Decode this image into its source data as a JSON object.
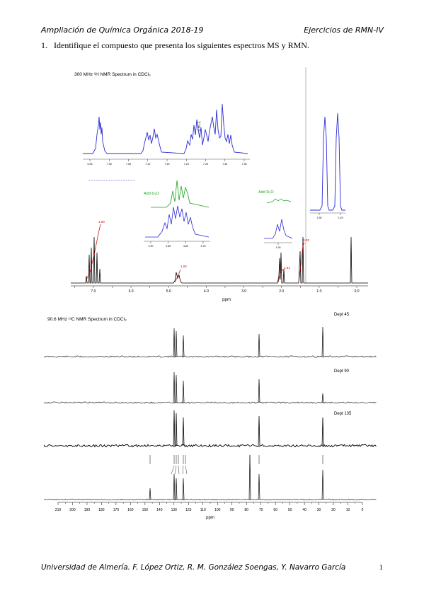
{
  "header": {
    "course": "Ampliación de Química Orgánica 2018-19",
    "section": "Ejercicios de RMN-IV"
  },
  "question": {
    "number": "1.",
    "text": "Identifique el compuesto que presenta los siguientes espectros MS y RMN."
  },
  "h_nmr": {
    "title": "300 MHz ¹H NMR Spectrum in CDCl₃",
    "axis_unit": "ppm",
    "axis_ticks": [
      "7.0",
      "6.0",
      "5.0",
      "4.0",
      "3.0",
      "2.0",
      "1.0",
      "0.0"
    ],
    "inset_aromatic_ticks": [
      "7.35",
      "7.30",
      "7.25",
      "7.20",
      "7.15",
      "7.10",
      "7.05",
      "7.00",
      "6.95"
    ],
    "inset_methine_ticks": [
      "4.90",
      "4.85",
      "4.80",
      "4.75"
    ],
    "inset_oh_ticks": [
      "1.90"
    ],
    "inset_methyl_ticks": [
      "1.50",
      "1.45"
    ],
    "add_d2o_label": "Add D₂O",
    "chcl3_label": "CHCl₃",
    "integrals": [
      "1.00",
      "1.02",
      "1.01",
      "3.03"
    ],
    "colors": {
      "inset": "#2b2bd6",
      "d2o": "#1aa31a",
      "integral": "#cc0000",
      "spectrum": "#000000"
    }
  },
  "c_nmr": {
    "title": "90.6 MHz ¹³C NMR Spectrum in CDCl₃",
    "axis_unit": "ppm",
    "axis_ticks": [
      "210",
      "200",
      "190",
      "180",
      "170",
      "160",
      "150",
      "140",
      "130",
      "120",
      "110",
      "100",
      "90",
      "80",
      "70",
      "60",
      "50",
      "40",
      "30",
      "20",
      "10",
      "0"
    ],
    "dept_labels": [
      "Dept 45",
      "Dept 90",
      "Dept 135"
    ]
  },
  "footer": {
    "authors": "Universidad de Almería. F. López Ortiz, R. M. González Soengas, Y. Navarro García",
    "page": "1"
  }
}
